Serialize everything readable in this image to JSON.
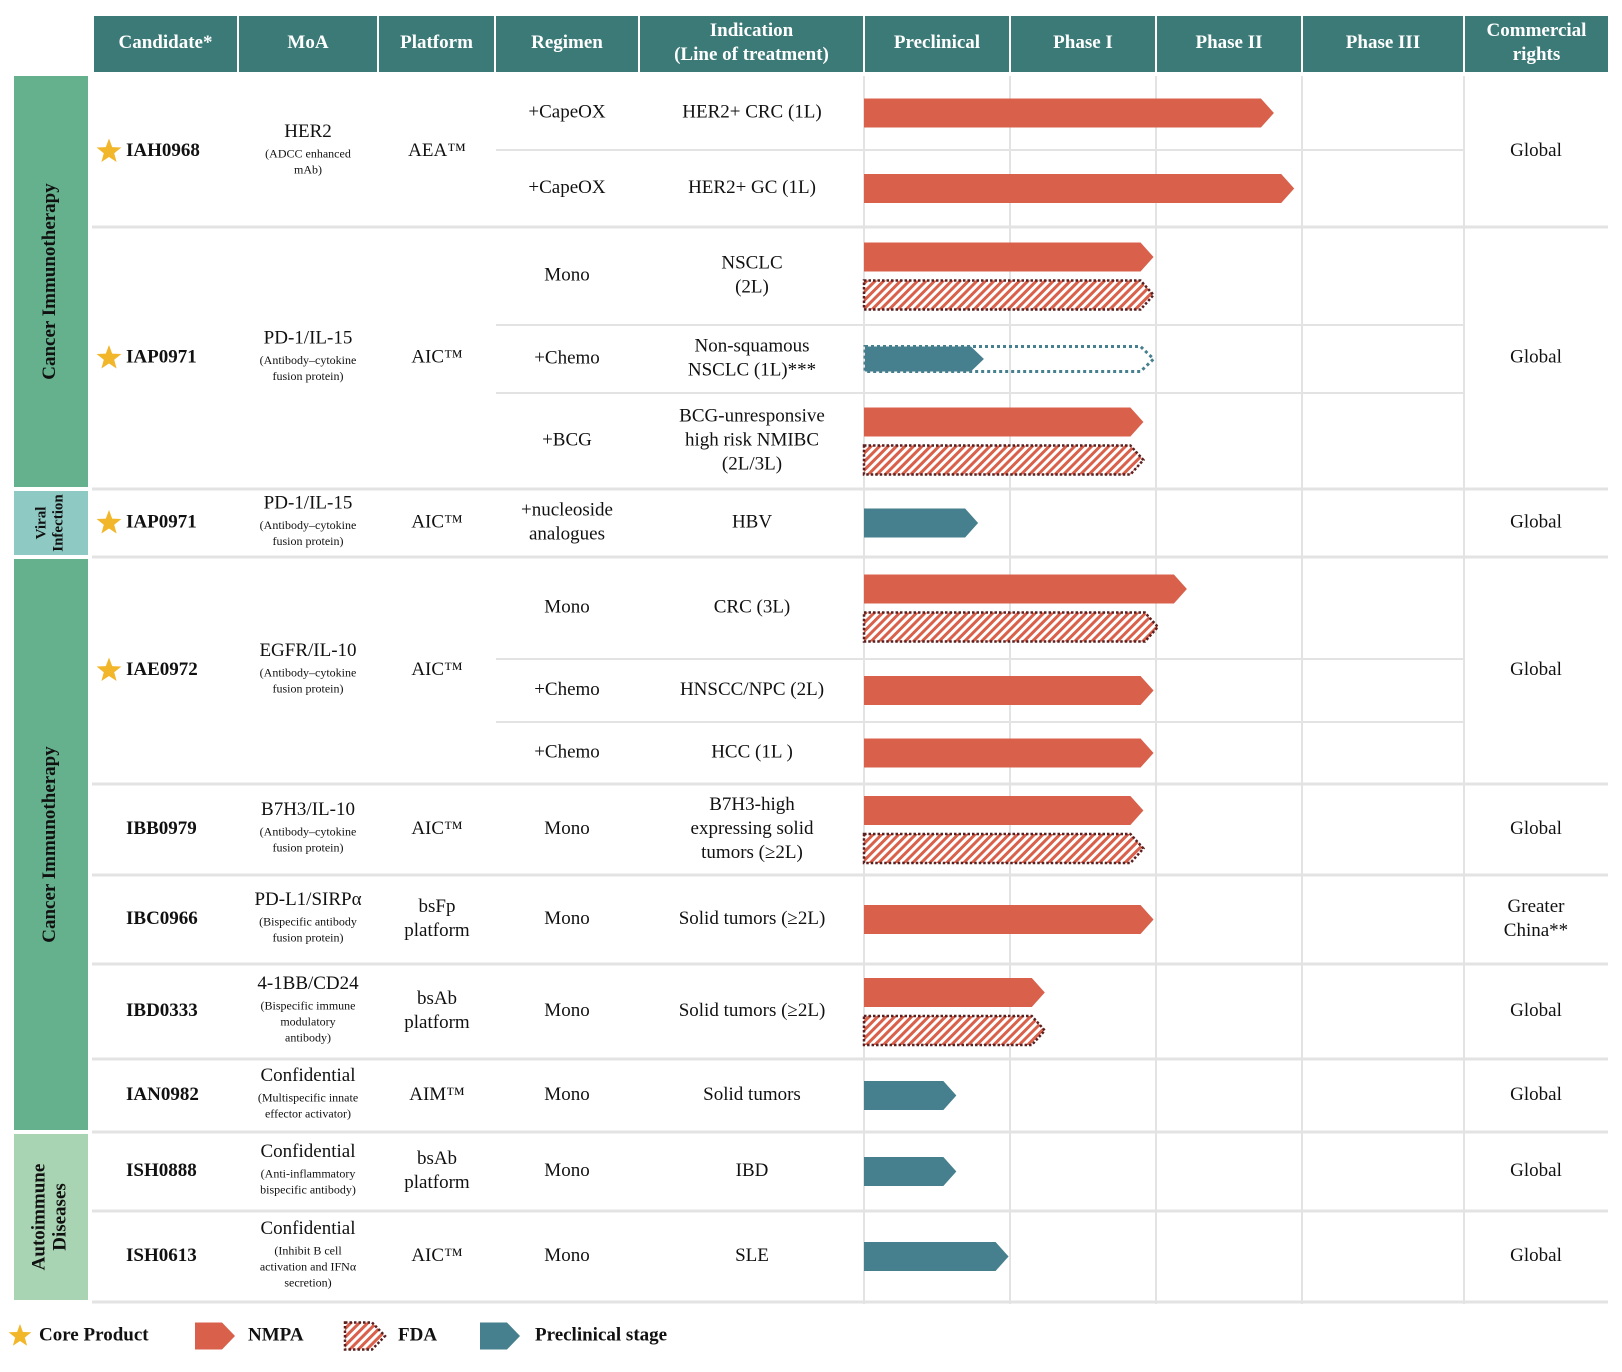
{
  "headers": [
    "Candidate*",
    "MoA",
    "Platform",
    "Regimen",
    "Indication\n(Line of treatment)",
    "Preclinical",
    "Phase I",
    "Phase II",
    "Phase III",
    "Commercial\nrights"
  ],
  "colors": {
    "header_bg": "#3b7a77",
    "area_cancer": "#65b18d",
    "area_viral": "#8ec9c3",
    "area_autoimmune": "#a9d4b3",
    "nmpa": "#d9604a",
    "fda_stroke": "#5a1f1f",
    "fda_hatch": "#d9604a",
    "preclinical": "#467f8e",
    "star": "#f2b62b",
    "grid": "#e3e3e3"
  },
  "chart_data": {
    "type": "pipeline",
    "phases": [
      "Preclinical",
      "Phase I",
      "Phase II",
      "Phase III"
    ],
    "scale_note": "progress values in phase units: 0 = start of Preclinical, 1 = end of Preclinical, 2 = end of Phase I, 3 = end of Phase II, 4 = end of Phase III",
    "areas": [
      {
        "name": "Cancer Immunotherapy",
        "first_candidate": 0,
        "last_candidate": 1,
        "color_key": "area_cancer"
      },
      {
        "name": "Viral Infection",
        "first_candidate": 2,
        "last_candidate": 2,
        "color_key": "area_viral"
      },
      {
        "name": "Cancer Immunotherapy",
        "first_candidate": 3,
        "last_candidate": 7,
        "color_key": "area_cancer"
      },
      {
        "name": "Autoimmune Diseases",
        "first_candidate": 8,
        "last_candidate": 9,
        "color_key": "area_autoimmune"
      }
    ],
    "candidates": [
      {
        "name": "IAH0968",
        "core": true,
        "moa": "HER2",
        "moa_sub": [
          "(ADCC enhanced",
          "mAb)"
        ],
        "platform": [
          "AEA™"
        ],
        "rights": [
          "Global"
        ],
        "rows": [
          {
            "regimen": [
              "+CapeOX"
            ],
            "indication": [
              "HER2+ CRC (1L)"
            ],
            "bars": [
              {
                "type": "nmpa",
                "progress": 2.82
              }
            ]
          },
          {
            "regimen": [
              "+CapeOX"
            ],
            "indication": [
              "HER2+ GC (1L)"
            ],
            "bars": [
              {
                "type": "nmpa",
                "progress": 2.96
              }
            ]
          }
        ]
      },
      {
        "name": "IAP0971",
        "core": true,
        "moa": "PD-1/IL-15",
        "moa_sub": [
          "(Antibody–cytokine",
          "fusion protein)"
        ],
        "platform": [
          "AIC™"
        ],
        "rights": [
          "Global"
        ],
        "rows": [
          {
            "regimen": [
              "Mono"
            ],
            "indication": [
              "NSCLC",
              "(2L)"
            ],
            "bars": [
              {
                "type": "nmpa",
                "progress": 1.99
              },
              {
                "type": "fda",
                "progress": 1.99
              }
            ]
          },
          {
            "regimen": [
              "+Chemo"
            ],
            "indication": [
              "Non-squamous",
              "NSCLC (1L)***"
            ],
            "bars": [
              {
                "type": "preclinical_planned",
                "progress": 0.82,
                "planned": 1.99
              }
            ]
          },
          {
            "regimen": [
              "+BCG"
            ],
            "indication": [
              "BCG-unresponsive",
              "high risk NMIBC",
              "(2L/3L)"
            ],
            "bars": [
              {
                "type": "nmpa",
                "progress": 1.92
              },
              {
                "type": "fda",
                "progress": 1.92
              }
            ]
          }
        ]
      },
      {
        "name": "IAP0971",
        "core": true,
        "moa": "PD-1/IL-15",
        "moa_sub": [
          "(Antibody–cytokine",
          "fusion protein)"
        ],
        "platform": [
          "AIC™"
        ],
        "rights": [
          "Global"
        ],
        "rows": [
          {
            "regimen": [
              "+nucleoside",
              "analogues"
            ],
            "indication": [
              "HBV"
            ],
            "bars": [
              {
                "type": "preclinical",
                "progress": 0.78
              }
            ]
          }
        ]
      },
      {
        "name": "IAE0972",
        "core": true,
        "moa": "EGFR/IL-10",
        "moa_sub": [
          "(Antibody–cytokine",
          "fusion protein)"
        ],
        "platform": [
          "AIC™"
        ],
        "rights": [
          "Global"
        ],
        "rows": [
          {
            "regimen": [
              "Mono"
            ],
            "indication": [
              "CRC (3L)"
            ],
            "bars": [
              {
                "type": "nmpa",
                "progress": 2.22
              },
              {
                "type": "fda",
                "progress": 2.02
              }
            ]
          },
          {
            "regimen": [
              "+Chemo"
            ],
            "indication": [
              "HNSCC/NPC (2L)"
            ],
            "bars": [
              {
                "type": "nmpa",
                "progress": 1.99
              }
            ]
          },
          {
            "regimen": [
              "+Chemo"
            ],
            "indication": [
              "HCC (1L )"
            ],
            "bars": [
              {
                "type": "nmpa",
                "progress": 1.99
              }
            ]
          }
        ]
      },
      {
        "name": "IBB0979",
        "core": false,
        "moa": "B7H3/IL-10",
        "moa_sub": [
          "(Antibody–cytokine",
          "fusion protein)"
        ],
        "platform": [
          "AIC™"
        ],
        "rights": [
          "Global"
        ],
        "rows": [
          {
            "regimen": [
              "Mono"
            ],
            "indication": [
              "B7H3-high",
              "expressing solid",
              "tumors (≥2L)"
            ],
            "bars": [
              {
                "type": "nmpa",
                "progress": 1.92
              },
              {
                "type": "fda",
                "progress": 1.92
              }
            ]
          }
        ]
      },
      {
        "name": "IBC0966",
        "core": false,
        "moa": "PD-L1/SIRPα",
        "moa_sub": [
          "(Bispecific antibody",
          "fusion protein)"
        ],
        "platform": [
          "bsFp",
          "platform"
        ],
        "rights": [
          "Greater",
          "China**"
        ],
        "rows": [
          {
            "regimen": [
              "Mono"
            ],
            "indication": [
              "Solid tumors (≥2L)"
            ],
            "bars": [
              {
                "type": "nmpa",
                "progress": 1.99
              }
            ]
          }
        ]
      },
      {
        "name": "IBD0333",
        "core": false,
        "moa": "4-1BB/CD24",
        "moa_sub": [
          "(Bispecific immune",
          "modulatory",
          "antibody)"
        ],
        "platform": [
          "bsAb",
          "platform"
        ],
        "rights": [
          "Global"
        ],
        "rows": [
          {
            "regimen": [
              "Mono"
            ],
            "indication": [
              "Solid tumors (≥2L)"
            ],
            "bars": [
              {
                "type": "nmpa",
                "progress": 1.24
              },
              {
                "type": "fda",
                "progress": 1.24
              }
            ]
          }
        ]
      },
      {
        "name": "IAN0982",
        "core": false,
        "moa": "Confidential",
        "moa_sub": [
          "(Multispecific innate",
          "effector activator)"
        ],
        "platform": [
          "AIM™"
        ],
        "rights": [
          "Global"
        ],
        "rows": [
          {
            "regimen": [
              "Mono"
            ],
            "indication": [
              "Solid tumors"
            ],
            "bars": [
              {
                "type": "preclinical",
                "progress": 0.63
              }
            ]
          }
        ]
      },
      {
        "name": "ISH0888",
        "core": false,
        "moa": "Confidential",
        "moa_sub": [
          "(Anti-inflammatory",
          "bispecific antibody)"
        ],
        "platform": [
          "bsAb",
          "platform"
        ],
        "rights": [
          "Global"
        ],
        "rows": [
          {
            "regimen": [
              "Mono"
            ],
            "indication": [
              "IBD"
            ],
            "bars": [
              {
                "type": "preclinical",
                "progress": 0.63
              }
            ]
          }
        ]
      },
      {
        "name": "ISH0613",
        "core": false,
        "moa": "Confidential",
        "moa_sub": [
          "(Inhibit B cell",
          "activation and IFNα",
          "secretion)"
        ],
        "platform": [
          "AIC™"
        ],
        "rights": [
          "Global"
        ],
        "rows": [
          {
            "regimen": [
              "Mono"
            ],
            "indication": [
              "SLE"
            ],
            "bars": [
              {
                "type": "preclinical",
                "progress": 0.99
              }
            ]
          }
        ]
      }
    ],
    "legend": [
      {
        "type": "core",
        "label": "Core Product"
      },
      {
        "type": "nmpa",
        "label": "NMPA"
      },
      {
        "type": "fda",
        "label": "FDA"
      },
      {
        "type": "preclinical",
        "label": "Preclinical stage"
      }
    ]
  }
}
